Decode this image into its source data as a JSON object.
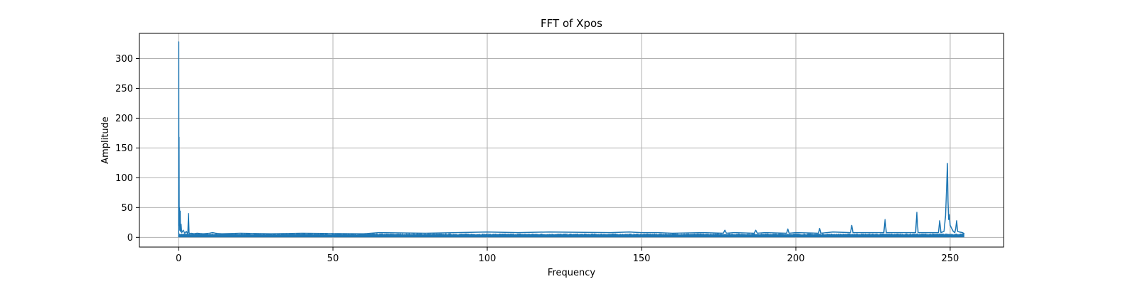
{
  "chart_data": {
    "type": "line",
    "title": "FFT of Xpos",
    "xlabel": "Frequency",
    "ylabel": "Amplitude",
    "xlim": [
      -12.7,
      267.3
    ],
    "ylim": [
      -16.3,
      342.3
    ],
    "xticks": [
      0,
      50,
      100,
      150,
      200,
      250
    ],
    "yticks": [
      0,
      50,
      100,
      150,
      200,
      250,
      300
    ],
    "grid": true,
    "legend": "none",
    "series_color": "#1f77b4",
    "noise_floor": {
      "x_range": [
        0,
        254.6
      ],
      "typical_max": 6.5
    },
    "series": [
      {
        "x": [
          0,
          0.05,
          0.1,
          0.15,
          0.2,
          0.3,
          0.4,
          0.5,
          0.6,
          0.8,
          1.0,
          1.5,
          2.0,
          2.5,
          3.0,
          3.2,
          3.4,
          3.6,
          4.0,
          5,
          6,
          8,
          10,
          11,
          12,
          14,
          20,
          30,
          40,
          60,
          65,
          80,
          100,
          110,
          120,
          140,
          146,
          150,
          155,
          160,
          170,
          176.5,
          177,
          177.5,
          180,
          186.5,
          187,
          187.5,
          190,
          197,
          197.4,
          197.8,
          200,
          207.3,
          207.7,
          208.1,
          212,
          217.7,
          218.1,
          218.5,
          222,
          228.5,
          228.9,
          229.3,
          234,
          238.8,
          239.2,
          239.6,
          244,
          246.2,
          246.6,
          247.0,
          248.0,
          248.5,
          248.9,
          249.1,
          249.3,
          249.5,
          249.7,
          250.0,
          250.5,
          251.0,
          251.5,
          251.8,
          252.1,
          252.4,
          253,
          254,
          254.6
        ],
        "y": [
          5,
          328,
          20,
          168,
          30,
          50,
          12,
          44,
          10,
          22,
          8,
          12,
          7,
          10,
          6,
          40,
          8,
          6,
          7,
          6,
          7,
          6,
          7,
          8,
          7,
          6,
          7,
          6,
          7,
          6,
          8,
          7,
          9,
          8,
          9,
          8,
          9,
          8,
          8,
          7,
          8,
          7,
          12,
          7,
          8,
          7,
          12,
          7,
          8,
          7,
          14,
          7,
          8,
          7,
          15,
          7,
          9,
          8,
          20,
          8,
          8,
          8,
          30,
          8,
          8,
          8,
          42,
          8,
          8,
          8,
          28,
          8,
          10,
          36,
          92,
          124,
          60,
          30,
          38,
          20,
          15,
          10,
          8,
          15,
          28,
          10,
          9,
          8,
          6
        ]
      }
    ]
  }
}
